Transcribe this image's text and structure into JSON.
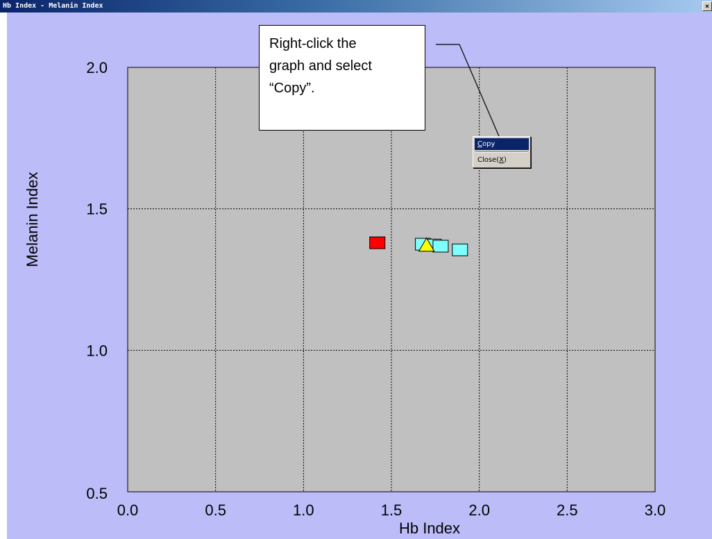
{
  "window": {
    "title": "Hb Index - Melanin Index",
    "close_glyph": "×"
  },
  "callout": {
    "lines": [
      "Right-click the",
      "graph and select",
      "“Copy”."
    ]
  },
  "context_menu": {
    "items": [
      {
        "label": "Copy",
        "mnemonic": "C",
        "selected": true
      },
      {
        "label": "Close",
        "mnemonic": "X",
        "selected": false
      }
    ]
  },
  "chart_data": {
    "type": "scatter",
    "xlabel": "Hb Index",
    "ylabel": "Melanin Index",
    "xlim": [
      0.0,
      3.0
    ],
    "ylim": [
      0.5,
      2.0
    ],
    "x_ticks": [
      "0.0",
      "0.5",
      "1.0",
      "1.5",
      "2.0",
      "2.5",
      "3.0"
    ],
    "y_ticks": [
      "0.5",
      "1.0",
      "1.5",
      "2.0"
    ],
    "grid": true,
    "plot_background": "#c0c0c0",
    "points": [
      {
        "x": 1.42,
        "y": 1.38,
        "marker": "square",
        "color": "#ff0000"
      },
      {
        "x": 1.68,
        "y": 1.375,
        "marker": "square",
        "color": "#80ffff"
      },
      {
        "x": 1.74,
        "y": 1.372,
        "marker": "square",
        "color": "#80ffff"
      },
      {
        "x": 1.78,
        "y": 1.368,
        "marker": "square",
        "color": "#80ffff"
      },
      {
        "x": 1.89,
        "y": 1.355,
        "marker": "square",
        "color": "#80ffff"
      },
      {
        "x": 1.7,
        "y": 1.37,
        "marker": "triangle",
        "color": "#ffff00"
      }
    ]
  }
}
